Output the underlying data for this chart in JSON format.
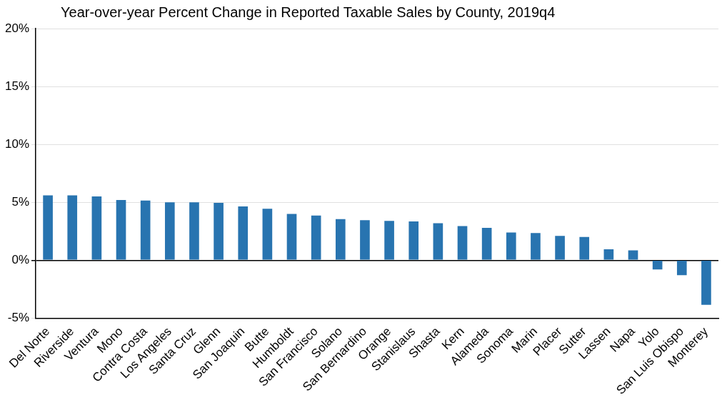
{
  "chart_data": {
    "type": "bar",
    "title": "Year-over-year Percent Change in Reported Taxable Sales by County, 2019q4",
    "categories": [
      "Del Norte",
      "Riverside",
      "Ventura",
      "Mono",
      "Contra Costa",
      "Los Angeles",
      "Santa Cruz",
      "Glenn",
      "San Joaquin",
      "Butte",
      "Humboldt",
      "San Francisco",
      "Solano",
      "San Bernardino",
      "Orange",
      "Stanislaus",
      "Shasta",
      "Kern",
      "Alameda",
      "Sonoma",
      "Marin",
      "Placer",
      "Sutter",
      "Lassen",
      "Napa",
      "Yolo",
      "San Luis Obispo",
      "Monterey"
    ],
    "values": [
      5.6,
      5.6,
      5.5,
      5.2,
      5.15,
      5.0,
      5.0,
      4.95,
      4.65,
      4.45,
      4.0,
      3.85,
      3.55,
      3.45,
      3.4,
      3.35,
      3.2,
      2.95,
      2.8,
      2.4,
      2.35,
      2.1,
      2.0,
      0.95,
      0.85,
      -0.8,
      -1.3,
      -3.85
    ],
    "color": "#2874b0",
    "ylim": [
      -5,
      20
    ],
    "yticks": [
      {
        "value": -5,
        "label": "-5%"
      },
      {
        "value": 0,
        "label": "0%"
      },
      {
        "value": 5,
        "label": "5%"
      },
      {
        "value": 10,
        "label": "10%"
      },
      {
        "value": 15,
        "label": "15%"
      },
      {
        "value": 20,
        "label": "20%"
      }
    ],
    "grid": "y"
  }
}
